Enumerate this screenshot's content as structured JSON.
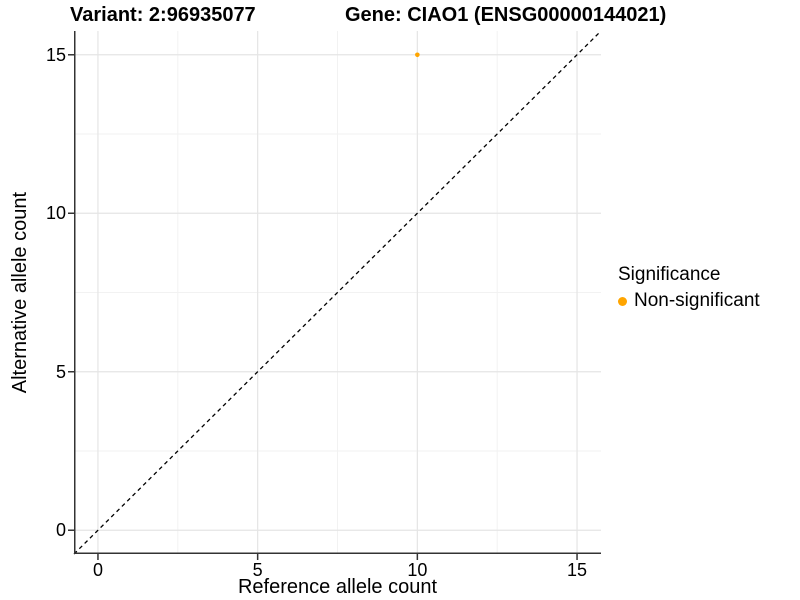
{
  "header": {
    "variant_title": "Variant: 2:96935077",
    "gene_title": "Gene: CIAO1 (ENSG00000144021)"
  },
  "chart_data": {
    "type": "scatter",
    "xlabel": "Reference allele count",
    "ylabel": "Alternative allele count",
    "x_ticks": [
      "0",
      "5",
      "10",
      "15"
    ],
    "y_ticks": [
      "0",
      "5",
      "10",
      "15"
    ],
    "x_tick_values": [
      0,
      5,
      10,
      15
    ],
    "y_tick_values": [
      0,
      5,
      10,
      15
    ],
    "x_minor_values": [
      2.5,
      7.5,
      12.5
    ],
    "y_minor_values": [
      2.5,
      7.5,
      12.5
    ],
    "xlim": [
      -0.75,
      15.75
    ],
    "ylim": [
      -0.75,
      15.75
    ],
    "grid": "major and minor gridlines, light gray on white panel",
    "identity_line": {
      "style": "dashed",
      "from": [
        -0.75,
        -0.75
      ],
      "to": [
        15.75,
        15.75
      ],
      "color": "#000000"
    },
    "series": [
      {
        "name": "Non-significant",
        "color": "#FFA500",
        "points": [
          {
            "x": 10,
            "y": 15
          }
        ]
      }
    ],
    "legend": {
      "title": "Significance",
      "position": "right",
      "entries": [
        {
          "label": "Non-significant",
          "color": "#FFA500"
        }
      ]
    }
  },
  "colors": {
    "background": "#FFFFFF",
    "axis_line": "#333333",
    "tick_mark": "#333333",
    "grid_major": "#E5E5E5",
    "grid_minor": "#F2F2F2",
    "point": "#FFA500",
    "text": "#000000"
  }
}
